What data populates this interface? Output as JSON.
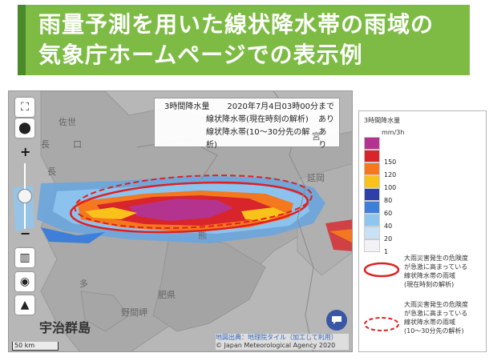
{
  "header": {
    "line1": "雨量予測を用いた線状降水帯の雨域の",
    "line2": "気象庁ホームページでの表示例",
    "bg_color": "#7dbb44"
  },
  "map": {
    "info": {
      "title": "3時間降水量",
      "datetime": "2020年7月4日03時00分まで",
      "row1_label": "線状降水帯(現在時刻の解析)",
      "row1_value": "あり",
      "row2_label": "線状降水帯(10～30分先の解析)",
      "row2_value": "あり"
    },
    "places": {
      "top_left": "佐世",
      "top_left2": "長",
      "top_left3": "口",
      "mid_left": "長",
      "lower_mid": "熊",
      "right1": "宮",
      "right2": "延岡",
      "lower1": "多",
      "lower2": "肥県",
      "lower3": "野間岬",
      "islands": "宇治群島"
    },
    "scale_label": "50 km",
    "credit_line1": "地図出典：地理院タイル（加工して利用）",
    "credit_line2": "© Japan Meteorological Agency 2020",
    "icons": {
      "fullscreen": "fullscreen-icon",
      "location": "location-pin-icon",
      "zoom_in": "+",
      "zoom_out": "−",
      "layers": "map-layers-icon",
      "drop": "water-drop-icon",
      "terrain": "mountain-icon",
      "feedback": "feedback-icon"
    }
  },
  "legend": {
    "title": "3時間降水量",
    "unit": "mm/3h",
    "levels": [
      {
        "label": "",
        "color": "#b4338f"
      },
      {
        "label": "150",
        "color": "#d8252c"
      },
      {
        "label": "120",
        "color": "#f3781e"
      },
      {
        "label": "100",
        "color": "#f9c21a"
      },
      {
        "label": "80",
        "color": "#2f3fa8"
      },
      {
        "label": "60",
        "color": "#3d7fd9"
      },
      {
        "label": "40",
        "color": "#8ec6ef"
      },
      {
        "label": "20",
        "color": "#c8e1f5"
      },
      {
        "label": "1",
        "color": "#f2f2f6"
      }
    ],
    "item1": [
      "大雨災害発生の危険度",
      "が急激に高まっている",
      "線状降水帯の雨域",
      "(現在時刻の解析)"
    ],
    "item2": [
      "大雨災害発生の危険度",
      "が急激に高まっている",
      "線状降水帯の雨域",
      "(10～30分先の解析)"
    ],
    "line_color": "#e02020"
  }
}
